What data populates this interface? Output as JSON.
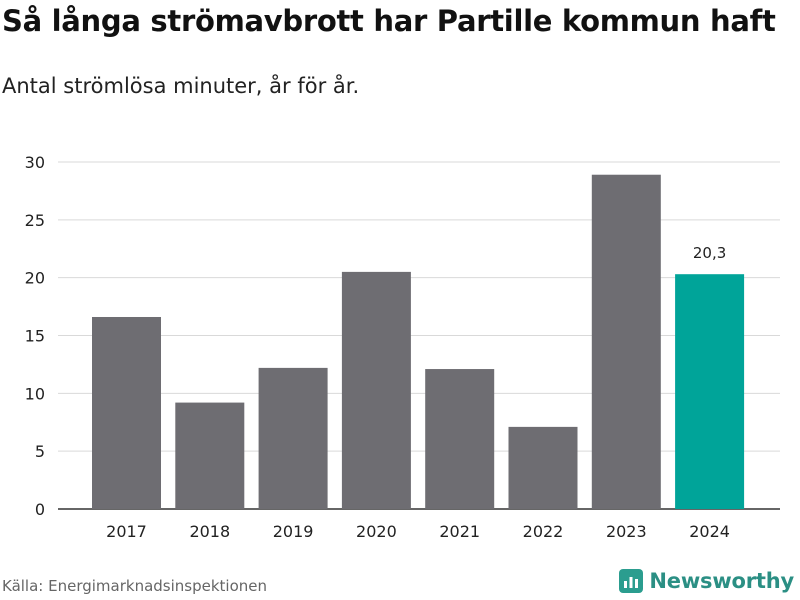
{
  "title": "Så långa strömavbrott har Partille kommun haft",
  "subtitle": "Antal strömlösa minuter, år för år.",
  "source": "Källa: Energimarknadsinspektionen",
  "brand": {
    "name": "Newsworthy",
    "icon": "newsworthy-logo-icon",
    "color": "#2b9d8f"
  },
  "colors": {
    "bar": "#6e6d72",
    "highlight": "#00a499",
    "grid": "#d9d9d9",
    "axis": "#333333"
  },
  "chart_data": {
    "type": "bar",
    "title": "Så långa strömavbrott har Partille kommun haft",
    "subtitle": "Antal strömlösa minuter, år för år.",
    "xlabel": "",
    "ylabel": "",
    "categories": [
      "2017",
      "2018",
      "2019",
      "2020",
      "2021",
      "2022",
      "2023",
      "2024"
    ],
    "values": [
      16.6,
      9.2,
      12.2,
      20.5,
      12.1,
      7.1,
      28.9,
      20.3
    ],
    "highlight_index": 7,
    "data_labels": [
      {
        "index": 7,
        "text": "20,3"
      }
    ],
    "ylim": [
      0,
      30
    ],
    "yticks": [
      0,
      5,
      10,
      15,
      20,
      25,
      30
    ],
    "grid": true
  }
}
